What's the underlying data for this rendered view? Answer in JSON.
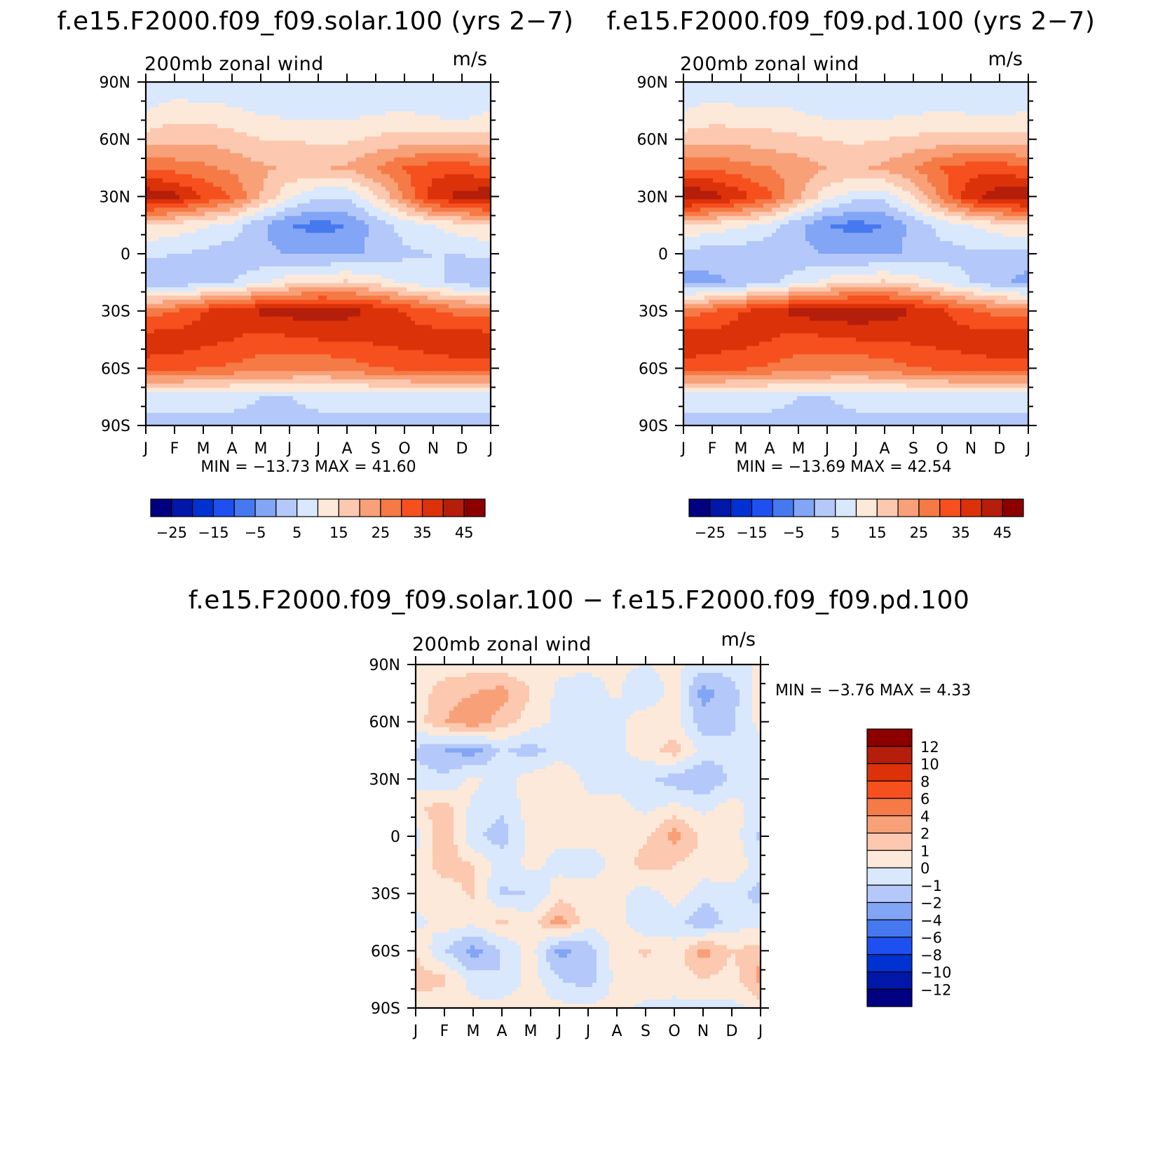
{
  "chart_data": [
    {
      "type": "heatmap",
      "title": "f.e15.F2000.f09_f09.solar.100 (yrs 2−7)",
      "subtitle": "200mb zonal wind",
      "units": "m/s",
      "x_ticks": [
        "J",
        "F",
        "M",
        "A",
        "M",
        "J",
        "J",
        "A",
        "S",
        "O",
        "N",
        "D",
        "J"
      ],
      "y_ticks": [
        "90N",
        "60N",
        "30N",
        "0",
        "30S",
        "60S",
        "90S"
      ],
      "ylim": [
        -90,
        90
      ],
      "min_max_text": "MIN = −13.73 MAX =   41.60",
      "min": -13.73,
      "max": 41.6,
      "colorbar_labels": [
        "−25",
        "−15",
        "−5",
        "5",
        "15",
        "25",
        "35",
        "45"
      ],
      "colors": [
        "#000080",
        "#0017a8",
        "#0032d2",
        "#1e50f0",
        "#4678f0",
        "#82a5f5",
        "#b4c8fa",
        "#d9e8fc",
        "#fde9d9",
        "#fcc8b0",
        "#f8a078",
        "#f57a46",
        "#f5501e",
        "#dc320a",
        "#b41e0a",
        "#8c0000"
      ],
      "levels": [
        -35,
        -30,
        -25,
        -20,
        -15,
        -10,
        -5,
        0,
        5,
        10,
        15,
        20,
        25,
        30,
        35,
        40,
        45,
        50
      ],
      "grid": {
        "lats": [
          90,
          75,
          60,
          45,
          30,
          15,
          0,
          -15,
          -30,
          -45,
          -60,
          -75,
          -90
        ],
        "months": [
          "J",
          "F",
          "M",
          "A",
          "M",
          "J",
          "J",
          "A",
          "S",
          "O",
          "N",
          "D",
          "J"
        ],
        "u": [
          [
            0,
            0,
            0,
            0,
            0,
            0,
            0,
            0,
            0,
            0,
            0,
            0,
            0
          ],
          [
            5,
            8,
            7,
            6,
            4,
            3,
            3,
            3,
            4,
            5,
            3,
            2,
            5
          ],
          [
            12,
            13,
            14,
            12,
            10,
            10,
            9,
            9,
            11,
            12,
            12,
            12,
            12
          ],
          [
            25,
            23,
            21,
            19,
            16,
            14,
            14,
            16,
            20,
            25,
            28,
            28,
            25
          ],
          [
            39,
            37,
            30,
            25,
            15,
            6,
            1,
            1,
            9,
            21,
            33,
            37,
            39
          ],
          [
            10,
            8,
            6,
            3,
            -4,
            -10,
            -12,
            -10,
            -3,
            2,
            5,
            8,
            10
          ],
          [
            1,
            0,
            -1,
            -3,
            -4,
            -5,
            -6,
            -6,
            -4,
            -1,
            0,
            0,
            1
          ],
          [
            -4,
            -4,
            -2,
            0,
            4,
            8,
            10,
            11,
            8,
            4,
            1,
            -2,
            -4
          ],
          [
            22,
            25,
            30,
            33,
            36,
            37,
            38,
            37,
            34,
            30,
            26,
            23,
            22
          ],
          [
            33,
            33,
            32,
            30,
            28,
            29,
            30,
            30,
            31,
            32,
            33,
            34,
            33
          ],
          [
            28,
            27,
            25,
            24,
            22,
            22,
            21,
            22,
            25,
            26,
            27,
            28,
            28
          ],
          [
            2,
            2,
            1,
            1,
            0,
            0,
            1,
            1,
            1,
            2,
            2,
            2,
            2
          ],
          [
            -2,
            -2,
            -1,
            -1,
            -1,
            -1,
            -1,
            -1,
            -1,
            -2,
            -2,
            -2,
            -2
          ]
        ]
      }
    },
    {
      "type": "heatmap",
      "title": "f.e15.F2000.f09_f09.pd.100 (yrs 2−7)",
      "subtitle": "200mb zonal wind",
      "units": "m/s",
      "x_ticks": [
        "J",
        "F",
        "M",
        "A",
        "M",
        "J",
        "J",
        "A",
        "S",
        "O",
        "N",
        "D",
        "J"
      ],
      "y_ticks": [
        "90N",
        "60N",
        "30N",
        "0",
        "30S",
        "60S",
        "90S"
      ],
      "ylim": [
        -90,
        90
      ],
      "min_max_text": "MIN = −13.69 MAX =   42.54",
      "min": -13.69,
      "max": 42.54,
      "colorbar_labels": [
        "−25",
        "−15",
        "−5",
        "5",
        "15",
        "25",
        "35",
        "45"
      ],
      "colors": [
        "#000080",
        "#0017a8",
        "#0032d2",
        "#1e50f0",
        "#4678f0",
        "#82a5f5",
        "#b4c8fa",
        "#d9e8fc",
        "#fde9d9",
        "#fcc8b0",
        "#f8a078",
        "#f57a46",
        "#f5501e",
        "#dc320a",
        "#b41e0a",
        "#8c0000"
      ],
      "levels": [
        -35,
        -30,
        -25,
        -20,
        -15,
        -10,
        -5,
        0,
        5,
        10,
        15,
        20,
        25,
        30,
        35,
        40,
        45,
        50
      ],
      "grid": {
        "lats": [
          90,
          75,
          60,
          45,
          30,
          15,
          0,
          -15,
          -30,
          -45,
          -60,
          -75,
          -90
        ],
        "months": [
          "J",
          "F",
          "M",
          "A",
          "M",
          "J",
          "J",
          "A",
          "S",
          "O",
          "N",
          "D",
          "J"
        ],
        "u": [
          [
            0,
            0,
            0,
            0,
            0,
            0,
            0,
            0,
            0,
            0,
            0,
            0,
            0
          ],
          [
            5,
            7,
            6,
            6,
            5,
            3,
            3,
            3,
            4,
            5,
            4,
            3,
            5
          ],
          [
            12,
            13,
            13,
            12,
            11,
            10,
            9,
            10,
            11,
            12,
            12,
            12,
            12
          ],
          [
            25,
            24,
            22,
            20,
            18,
            15,
            14,
            16,
            20,
            25,
            28,
            28,
            25
          ],
          [
            40,
            38,
            32,
            26,
            16,
            7,
            2,
            2,
            10,
            22,
            34,
            38,
            40
          ],
          [
            10,
            8,
            6,
            3,
            -4,
            -10,
            -12,
            -10,
            -3,
            2,
            5,
            8,
            10
          ],
          [
            -2,
            -3,
            -3,
            -4,
            -4,
            -5,
            -6,
            -6,
            -4,
            -2,
            -1,
            -1,
            -2
          ],
          [
            -7,
            -6,
            -4,
            -1,
            3,
            7,
            10,
            11,
            8,
            4,
            0,
            -4,
            -7
          ],
          [
            22,
            25,
            30,
            33,
            37,
            38,
            39,
            38,
            35,
            31,
            26,
            23,
            22
          ],
          [
            34,
            33,
            32,
            30,
            28,
            29,
            30,
            30,
            31,
            32,
            33,
            34,
            34
          ],
          [
            28,
            27,
            26,
            24,
            22,
            22,
            21,
            22,
            25,
            26,
            27,
            28,
            28
          ],
          [
            2,
            2,
            1,
            1,
            0,
            0,
            1,
            1,
            1,
            2,
            2,
            2,
            2
          ],
          [
            -2,
            -2,
            -1,
            -1,
            -1,
            -1,
            -1,
            -1,
            -1,
            -2,
            -2,
            -2,
            -2
          ]
        ]
      }
    },
    {
      "type": "heatmap",
      "title": "f.e15.F2000.f09_f09.solar.100 − f.e15.F2000.f09_f09.pd.100",
      "subtitle": "200mb zonal wind",
      "units": "m/s",
      "x_ticks": [
        "J",
        "F",
        "M",
        "A",
        "M",
        "J",
        "J",
        "A",
        "S",
        "O",
        "N",
        "D",
        "J"
      ],
      "y_ticks": [
        "90N",
        "60N",
        "30N",
        "0",
        "30S",
        "60S",
        "90S"
      ],
      "ylim": [
        -90,
        90
      ],
      "min_max_text": "MIN =   −3.76 MAX =    4.33",
      "min": -3.76,
      "max": 4.33,
      "colorbar_labels": [
        "12",
        "10",
        "8",
        "6",
        "4",
        "2",
        "1",
        "0",
        "−1",
        "−2",
        "−4",
        "−6",
        "−8",
        "−10",
        "−12"
      ],
      "colors": [
        "#000080",
        "#0017a8",
        "#0032d2",
        "#1e50f0",
        "#4678f0",
        "#82a5f5",
        "#b4c8fa",
        "#d9e8fc",
        "#fde9d9",
        "#fcc8b0",
        "#f8a078",
        "#f57a46",
        "#f5501e",
        "#dc320a",
        "#b41e0a",
        "#8c0000"
      ],
      "levels": [
        -16,
        -12,
        -10,
        -8,
        -6,
        -4,
        -2,
        -1,
        0,
        1,
        2,
        4,
        6,
        8,
        10,
        12,
        16
      ],
      "grid": {
        "lats": [
          90,
          75,
          60,
          45,
          30,
          15,
          0,
          -15,
          -30,
          -45,
          -60,
          -75,
          -90
        ],
        "months": [
          "J",
          "F",
          "M",
          "A",
          "M",
          "J",
          "J",
          "A",
          "S",
          "O",
          "N",
          "D",
          "J"
        ],
        "u": [
          [
            0.3,
            0.5,
            0.5,
            0.4,
            0.3,
            0.3,
            0.2,
            0.2,
            0.0,
            0.3,
            -0.5,
            -0.5,
            0.3
          ],
          [
            0.5,
            1.5,
            2.0,
            2.5,
            1.0,
            -0.3,
            -0.5,
            0.2,
            -1.0,
            0.5,
            -2.5,
            -1.5,
            0.5
          ],
          [
            0.5,
            2.0,
            2.8,
            1.5,
            0.5,
            -0.3,
            -0.8,
            -0.5,
            0.8,
            0.3,
            -1.5,
            -1.2,
            0.5
          ],
          [
            -1.2,
            -2.0,
            -2.5,
            -0.8,
            -1.5,
            -0.5,
            -0.5,
            -0.3,
            0.5,
            1.5,
            -0.5,
            -0.8,
            -1.0
          ],
          [
            -0.5,
            -0.8,
            0.3,
            -0.5,
            0.5,
            0.8,
            -0.3,
            -0.5,
            -0.8,
            -1.5,
            -2.0,
            -0.8,
            -0.5
          ],
          [
            0.8,
            1.5,
            -0.3,
            -0.8,
            0.5,
            0.3,
            0.3,
            0.5,
            -0.3,
            0.3,
            -0.3,
            0.5,
            -0.5
          ],
          [
            -0.5,
            2.0,
            -0.8,
            -1.5,
            0.3,
            0.2,
            0.3,
            0.3,
            0.8,
            2.5,
            0.8,
            0.5,
            -1.2
          ],
          [
            0.3,
            1.5,
            1.0,
            -0.5,
            0.3,
            -0.3,
            -0.5,
            0.3,
            1.5,
            1.0,
            0.5,
            0.8,
            -0.5
          ],
          [
            0.3,
            0.5,
            1.2,
            -1.2,
            -1.0,
            0.5,
            0.5,
            0.3,
            -0.5,
            0.5,
            -0.5,
            -0.5,
            -1.5
          ],
          [
            -0.3,
            0.5,
            0.3,
            1.2,
            0.5,
            2.5,
            0.3,
            0.5,
            -1.0,
            -0.5,
            -2.0,
            -0.5,
            -0.3
          ],
          [
            1.0,
            -1.0,
            -2.5,
            -1.0,
            0.5,
            -2.5,
            -1.5,
            0.5,
            1.2,
            0.3,
            2.5,
            1.0,
            1.5
          ],
          [
            1.5,
            1.2,
            -0.5,
            -1.0,
            0.5,
            -1.0,
            -1.5,
            0.3,
            0.5,
            0.5,
            1.0,
            0.5,
            2.5
          ],
          [
            0.5,
            0.3,
            0.3,
            0.5,
            0.5,
            0.3,
            0.3,
            0.3,
            -0.2,
            -0.3,
            -0.3,
            -0.3,
            0.3
          ]
        ]
      }
    }
  ]
}
